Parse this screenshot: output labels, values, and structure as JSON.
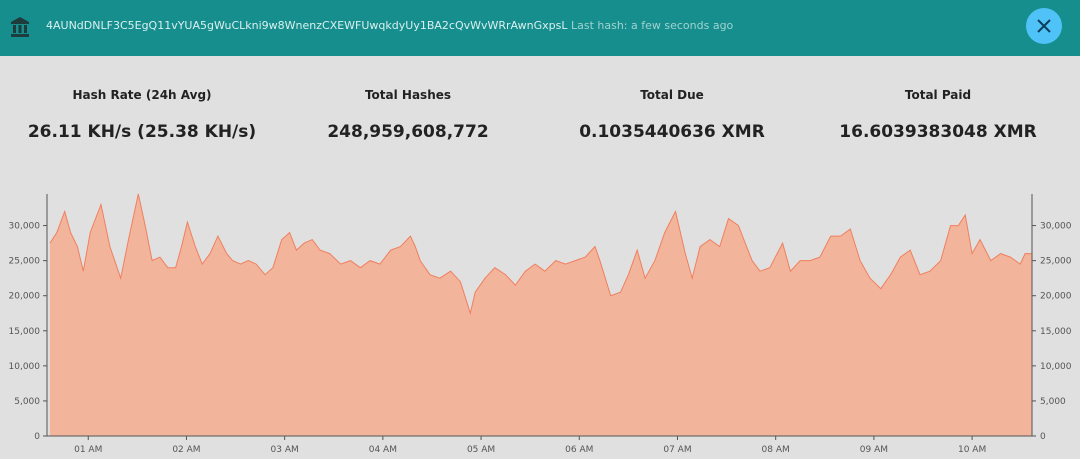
{
  "header": {
    "address": "4AUNdDNLF3C5EgQ11vYUA5gWuCLkni9w8WnenzCXEWFUwqkdyUy1BA2cQvWvWRrAwnGxpsL",
    "last_hash": "Last hash: a few seconds ago"
  },
  "stats": [
    {
      "label": "Hash Rate (24h Avg)",
      "value": "26.11 KH/s (25.38 KH/s)"
    },
    {
      "label": "Total Hashes",
      "value": "248,959,608,772"
    },
    {
      "label": "Total Due",
      "value": "0.1035440636 XMR"
    },
    {
      "label": "Total Paid",
      "value": "16.6039383048 XMR"
    }
  ],
  "chart_data": {
    "type": "area",
    "color": "#f2b59b",
    "line_color": "#f07f5e",
    "x": [
      0.61,
      0.68,
      0.76,
      0.82,
      0.89,
      0.95,
      1.02,
      1.13,
      1.22,
      1.33,
      1.41,
      1.51,
      1.58,
      1.65,
      1.73,
      1.81,
      1.89,
      1.95,
      2.01,
      2.09,
      2.16,
      2.24,
      2.32,
      2.41,
      2.47,
      2.55,
      2.63,
      2.71,
      2.8,
      2.88,
      2.97,
      3.05,
      3.12,
      3.2,
      3.28,
      3.36,
      3.46,
      3.57,
      3.67,
      3.77,
      3.87,
      3.97,
      4.08,
      4.18,
      4.28,
      4.33,
      4.38,
      4.48,
      4.58,
      4.69,
      4.79,
      4.89,
      4.94,
      5.04,
      5.14,
      5.25,
      5.35,
      5.45,
      5.55,
      5.65,
      5.76,
      5.86,
      5.96,
      6.06,
      6.16,
      6.21,
      6.32,
      6.42,
      6.5,
      6.59,
      6.67,
      6.77,
      6.87,
      6.98,
      7.08,
      7.15,
      7.23,
      7.33,
      7.43,
      7.52,
      7.62,
      7.69,
      7.76,
      7.84,
      7.94,
      8.07,
      8.15,
      8.25,
      8.35,
      8.45,
      8.56,
      8.66,
      8.76,
      8.86,
      8.96,
      9.07,
      9.17,
      9.27,
      9.37,
      9.47,
      9.57,
      9.68,
      9.78,
      9.86,
      9.93,
      10.0,
      10.08,
      10.19,
      10.29,
      10.39,
      10.49,
      10.54,
      10.61
    ],
    "values": [
      27500,
      29000,
      32000,
      29000,
      27000,
      23500,
      29000,
      33000,
      27000,
      22500,
      28000,
      34500,
      30000,
      25000,
      25500,
      24000,
      24000,
      27000,
      30500,
      27000,
      24500,
      26000,
      28500,
      26000,
      25000,
      24500,
      25000,
      24500,
      23000,
      24000,
      28000,
      29000,
      26500,
      27500,
      28000,
      26500,
      26000,
      24500,
      25000,
      24000,
      25000,
      24500,
      26500,
      27000,
      28500,
      27000,
      25000,
      23000,
      22500,
      23500,
      22000,
      17500,
      20500,
      22500,
      24000,
      23000,
      21500,
      23500,
      24500,
      23500,
      25000,
      24500,
      25000,
      25500,
      27000,
      25000,
      20000,
      20500,
      23000,
      26500,
      22500,
      25000,
      29000,
      32000,
      26000,
      22500,
      27000,
      28000,
      27000,
      31000,
      30000,
      27500,
      25000,
      23500,
      24000,
      27500,
      23500,
      25000,
      25000,
      25500,
      28500,
      28500,
      29500,
      25000,
      22500,
      21000,
      23000,
      25500,
      26500,
      23000,
      23500,
      25000,
      30000,
      30000,
      31500,
      26000,
      28000,
      25000,
      26000,
      25500,
      24500,
      26000,
      26000
    ],
    "xlim": [
      0.58,
      10.61
    ],
    "xticks": [
      {
        "value": 1,
        "label": "01 AM"
      },
      {
        "value": 2,
        "label": "02 AM"
      },
      {
        "value": 3,
        "label": "03 AM"
      },
      {
        "value": 4,
        "label": "04 AM"
      },
      {
        "value": 5,
        "label": "05 AM"
      },
      {
        "value": 6,
        "label": "06 AM"
      },
      {
        "value": 7,
        "label": "07 AM"
      },
      {
        "value": 8,
        "label": "08 AM"
      },
      {
        "value": 9,
        "label": "09 AM"
      },
      {
        "value": 10,
        "label": "10 AM"
      }
    ],
    "ylim": [
      0,
      34500
    ],
    "yticks": [
      0,
      {
        "value": 5000,
        "label": "5,000"
      },
      {
        "value": 10000,
        "label": "10,000"
      },
      {
        "value": 15000,
        "label": "15,000"
      },
      {
        "value": 20000,
        "label": "20,000"
      },
      {
        "value": 25000,
        "label": "25,000"
      },
      {
        "value": 30000,
        "label": "30,000"
      }
    ],
    "y2lim": [
      0,
      34500
    ],
    "y2ticks": [
      0,
      {
        "value": 5000,
        "label": "5,000"
      },
      {
        "value": 10000,
        "label": "10,000"
      },
      {
        "value": 15000,
        "label": "15,000"
      },
      {
        "value": 20000,
        "label": "20,000"
      },
      {
        "value": 25000,
        "label": "25,000"
      },
      {
        "value": 30000,
        "label": "30,000"
      }
    ]
  }
}
